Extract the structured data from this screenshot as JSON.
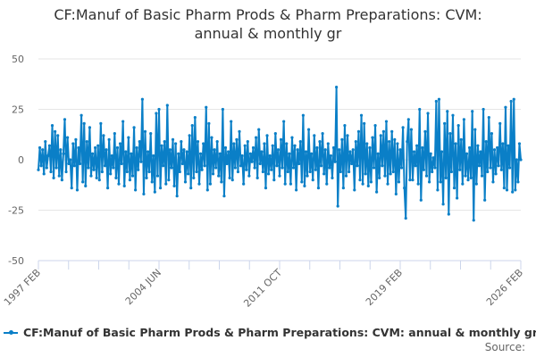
{
  "chart_data": {
    "type": "line",
    "title": "CF:Manuf of Basic Pharm Prods & Pharm Preparations: CVM: annual & monthly gr",
    "title_display": [
      "CF:Manuf of Basic Pharm Prods & Pharm Preparations: CVM:",
      "annual & monthly gr"
    ],
    "x_start": "1997 FEB",
    "x_end": "2026 FEB",
    "x_tick_labels": [
      "1997 FEB",
      "2004 JUN",
      "2011 OCT",
      "2019 FEB",
      "2026 FEB"
    ],
    "y_ticks": [
      50,
      25,
      0,
      -25,
      -50
    ],
    "ylim": [
      -50,
      50
    ],
    "grid": true,
    "legend_position": "bottom",
    "color": "#0a7fc7",
    "series": [
      {
        "name": "CF:Manuf of Basic Pharm Prods & Pharm Preparations: CVM: annual & monthly gr",
        "values": [
          -5,
          6,
          -3,
          5,
          -7,
          9,
          -4,
          2,
          7,
          -6,
          17,
          -9,
          14,
          -4,
          12,
          -8,
          5,
          -10,
          3,
          20,
          -6,
          11,
          -2,
          0,
          -14,
          8,
          -3,
          10,
          -15,
          6,
          -2,
          22,
          -11,
          18,
          -13,
          9,
          -4,
          16,
          -8,
          3,
          -5,
          6,
          -9,
          7,
          -10,
          18,
          -6,
          12,
          -3,
          5,
          -14,
          10,
          -7,
          2,
          -4,
          13,
          -9,
          6,
          -12,
          8,
          -2,
          19,
          -13,
          4,
          -6,
          11,
          -10,
          3,
          -8,
          16,
          -15,
          6,
          -5,
          9,
          -1,
          30,
          -17,
          14,
          -9,
          4,
          -6,
          13,
          -11,
          2,
          -16,
          23,
          -8,
          25,
          -14,
          7,
          -3,
          9,
          -12,
          27,
          -10,
          5,
          -4,
          10,
          -13,
          8,
          -18,
          3,
          -6,
          9,
          -2,
          5,
          -11,
          4,
          -7,
          12,
          -14,
          17,
          -9,
          21,
          -6,
          9,
          -12,
          3,
          -5,
          8,
          -3,
          26,
          -15,
          18,
          -12,
          11,
          -7,
          5,
          -4,
          9,
          -8,
          3,
          -11,
          25,
          -18,
          6,
          -2,
          4,
          -9,
          19,
          -10,
          8,
          -4,
          10,
          -6,
          14,
          -3,
          2,
          -12,
          7,
          -5,
          9,
          -8,
          3,
          -1,
          6,
          -4,
          11,
          -9,
          15,
          -2,
          4,
          -6,
          8,
          -14,
          12,
          -7,
          2,
          -5,
          7,
          -10,
          13,
          -3,
          5,
          -8,
          10,
          -4,
          19,
          -12,
          8,
          -6,
          3,
          -12,
          11,
          -4,
          7,
          -15,
          5,
          -2,
          9,
          -11,
          22,
          -13,
          4,
          -8,
          15,
          -6,
          3,
          -10,
          12,
          -5,
          6,
          -14,
          9,
          -3,
          13,
          -7,
          5,
          -12,
          8,
          -4,
          2,
          -9,
          6,
          -1,
          36,
          -23,
          5,
          -6,
          10,
          -14,
          17,
          -8,
          12,
          -6,
          4,
          -2,
          5,
          -15,
          9,
          -3,
          14,
          -10,
          22,
          -12,
          18,
          -7,
          8,
          -13,
          6,
          -11,
          11,
          -4,
          17,
          -16,
          3,
          -9,
          12,
          -3,
          14,
          -8,
          19,
          -12,
          9,
          -7,
          14,
          -6,
          10,
          -17,
          8,
          -11,
          5,
          -4,
          16,
          -14,
          -29,
          9,
          20,
          -10,
          15,
          -10,
          4,
          -3,
          7,
          -12,
          25,
          -20,
          6,
          -5,
          14,
          -8,
          23,
          -11,
          3,
          -6,
          1,
          -4,
          29,
          -15,
          30,
          -11,
          4,
          -22,
          18,
          -9,
          24,
          -27,
          13,
          -6,
          22,
          -14,
          8,
          -19,
          17,
          -5,
          10,
          -12,
          20,
          -8,
          3,
          -10,
          6,
          -9,
          24,
          -30,
          15,
          -12,
          7,
          -3,
          4,
          -8,
          25,
          -20,
          9,
          -6,
          21,
          -4,
          13,
          -11,
          5,
          -7,
          6,
          -3,
          18,
          -5,
          8,
          -14,
          26,
          -15,
          7,
          -4,
          29,
          -16,
          30,
          -15,
          0,
          -11,
          8,
          0
        ]
      }
    ]
  },
  "legend": {
    "label": "CF:Manuf of Basic Pharm Prods & Pharm Preparations: CVM: annual & monthly gr"
  },
  "source": {
    "label": "Source:"
  }
}
